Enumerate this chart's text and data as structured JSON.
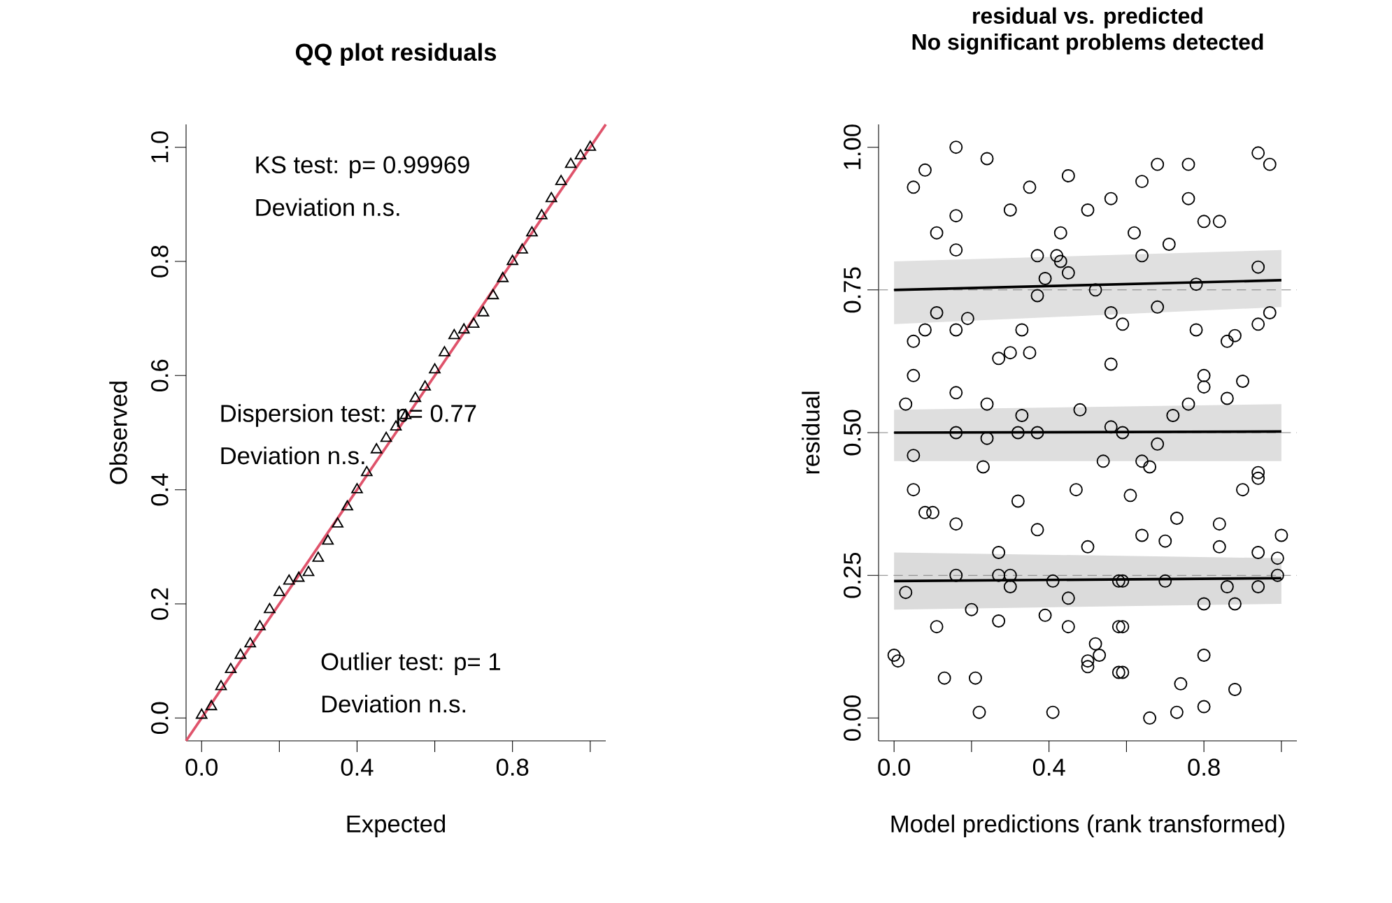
{
  "chart_data": [
    {
      "type": "scatter",
      "title": "QQ plot residuals",
      "xlabel": "Expected",
      "ylabel": "Observed",
      "xlim": [
        -0.04,
        1.04
      ],
      "ylim": [
        -0.04,
        1.04
      ],
      "xticks": [
        {
          "value": 0,
          "label": "0.0"
        },
        {
          "value": 0.2,
          "label": null
        },
        {
          "value": 0.4,
          "label": "0.4"
        },
        {
          "value": 0.6,
          "label": null
        },
        {
          "value": 0.8,
          "label": "0.8"
        },
        {
          "value": 1.0,
          "label": null
        }
      ],
      "yticks": [
        {
          "value": 0,
          "label": "0.0"
        },
        {
          "value": 0.2,
          "label": "0.2"
        },
        {
          "value": 0.4,
          "label": "0.4"
        },
        {
          "value": 0.6,
          "label": "0.6"
        },
        {
          "value": 0.8,
          "label": "0.8"
        },
        {
          "value": 1.0,
          "label": "1.0"
        }
      ],
      "annotations": [
        "KS test: p= 0.99969",
        "Deviation  n.s.",
        "Dispersion test: p= 0.77",
        "Deviation  n.s.",
        "Outlier test: p= 1",
        "Deviation  n.s."
      ],
      "series": [
        {
          "marker": "triangle",
          "color": "#000000",
          "x": [
            0,
            0.025,
            0.05,
            0.075,
            0.1,
            0.125,
            0.15,
            0.175,
            0.2,
            0.225,
            0.25,
            0.275,
            0.3,
            0.325,
            0.35,
            0.375,
            0.4,
            0.425,
            0.45,
            0.475,
            0.5,
            0.525,
            0.55,
            0.575,
            0.6,
            0.625,
            0.65,
            0.675,
            0.7,
            0.725,
            0.75,
            0.775,
            0.8,
            0.825,
            0.85,
            0.875,
            0.9,
            0.925,
            0.95,
            0.975,
            1.0
          ],
          "values": [
            0.005,
            0.02,
            0.055,
            0.085,
            0.11,
            0.13,
            0.16,
            0.19,
            0.22,
            0.24,
            0.245,
            0.255,
            0.28,
            0.31,
            0.34,
            0.37,
            0.4,
            0.43,
            0.47,
            0.49,
            0.51,
            0.53,
            0.56,
            0.58,
            0.61,
            0.64,
            0.67,
            0.68,
            0.69,
            0.71,
            0.74,
            0.77,
            0.8,
            0.82,
            0.85,
            0.88,
            0.91,
            0.94,
            0.97,
            0.985,
            1.0
          ]
        },
        {
          "type": "line",
          "color": "#df536b",
          "x": [
            -0.04,
            1.04
          ],
          "values": [
            -0.04,
            1.04
          ]
        }
      ]
    },
    {
      "type": "scatter",
      "title": "residual vs. predicted",
      "subtitle": "No significant problems detected",
      "xlabel": "Model predictions (rank transformed)",
      "ylabel": "residual",
      "xlim": [
        -0.04,
        1.04
      ],
      "ylim": [
        -0.04,
        1.04
      ],
      "xticks": [
        {
          "value": 0,
          "label": "0.0"
        },
        {
          "value": 0.2,
          "label": null
        },
        {
          "value": 0.4,
          "label": "0.4"
        },
        {
          "value": 0.6,
          "label": null
        },
        {
          "value": 0.8,
          "label": "0.8"
        },
        {
          "value": 1.0,
          "label": null
        }
      ],
      "yticks": [
        {
          "value": 0,
          "label": "0.00"
        },
        {
          "value": 0.25,
          "label": "0.25"
        },
        {
          "value": 0.5,
          "label": "0.50"
        },
        {
          "value": 0.75,
          "label": "0.75"
        },
        {
          "value": 1.0,
          "label": "1.00"
        }
      ],
      "ref_lines": [
        {
          "axis": "y",
          "value": 0.25,
          "color": "#808080",
          "line_style": "dashed"
        },
        {
          "axis": "y",
          "value": 0.5,
          "color": "#808080",
          "line_style": "dashed"
        },
        {
          "axis": "y",
          "value": 0.75,
          "color": "#808080",
          "line_style": "dashed"
        }
      ],
      "series": [
        {
          "type": "line",
          "color": "#000000",
          "x": [
            0,
            1
          ],
          "values": [
            0.75,
            0.767
          ],
          "lower": [
            0.69,
            0.72
          ],
          "upper": [
            0.8,
            0.82
          ]
        },
        {
          "type": "line",
          "color": "#000000",
          "x": [
            0,
            1
          ],
          "values": [
            0.5,
            0.502
          ],
          "lower": [
            0.45,
            0.45
          ],
          "upper": [
            0.54,
            0.55
          ]
        },
        {
          "type": "line",
          "color": "#000000",
          "x": [
            0,
            1
          ],
          "values": [
            0.24,
            0.245
          ],
          "lower": [
            0.19,
            0.2
          ],
          "upper": [
            0.29,
            0.28
          ]
        },
        {
          "marker": "circle",
          "color": "#000000",
          "x": [
            0.16,
            0.08,
            0.24,
            0.05,
            0.35,
            0.45,
            0.56,
            0.5,
            0.3,
            0.16,
            0.11,
            0.43,
            0.16,
            0.37,
            0.42,
            0.43,
            0.45,
            0.39,
            0.37,
            0.52,
            0.11,
            0.19,
            0.08,
            0.16,
            0.33,
            0.05,
            0.3,
            0.27,
            0.35,
            0.56,
            0.56,
            0.05,
            0.03,
            0.16,
            0.24,
            0.33,
            0.48,
            0.16,
            0.24,
            0.32,
            0.37,
            0.56,
            0.05,
            0.23,
            0.54,
            0.68,
            0.76,
            0.94,
            0.97,
            0.64,
            0.76,
            0.8,
            0.84,
            0.62,
            0.64,
            0.71,
            0.94,
            0.78,
            0.68,
            0.59,
            0.78,
            0.88,
            0.86,
            0.94,
            0.97,
            0.8,
            0.8,
            0.9,
            0.86,
            0.76,
            0.72,
            0.59,
            0.68,
            0.64,
            0.66,
            0.94,
            0.05,
            0.08,
            0.1,
            0.47,
            0.32,
            0.16,
            0.37,
            0.27,
            0.5,
            0.03,
            0.16,
            0.27,
            0.3,
            0.3,
            0.41,
            0.45,
            0.58,
            0.2,
            0.11,
            0.27,
            0.39,
            0.45,
            0.52,
            0.53,
            0.5,
            0.5,
            0.0,
            0.01,
            0.13,
            0.21,
            0.22,
            0.41,
            0.58,
            0.58,
            0.61,
            0.9,
            0.94,
            0.73,
            0.64,
            0.7,
            0.84,
            0.84,
            1.0,
            0.94,
            0.99,
            0.99,
            0.59,
            0.7,
            0.86,
            0.94,
            0.8,
            0.88,
            0.59,
            0.8,
            0.59,
            0.74,
            0.88,
            0.66,
            0.73,
            0.8
          ],
          "values": [
            1.0,
            0.96,
            0.98,
            0.93,
            0.93,
            0.95,
            0.91,
            0.89,
            0.89,
            0.88,
            0.85,
            0.85,
            0.82,
            0.81,
            0.81,
            0.8,
            0.78,
            0.77,
            0.74,
            0.75,
            0.71,
            0.7,
            0.68,
            0.68,
            0.68,
            0.66,
            0.64,
            0.63,
            0.64,
            0.71,
            0.62,
            0.6,
            0.55,
            0.57,
            0.55,
            0.53,
            0.54,
            0.5,
            0.49,
            0.5,
            0.5,
            0.51,
            0.46,
            0.44,
            0.45,
            0.97,
            0.97,
            0.99,
            0.97,
            0.94,
            0.91,
            0.87,
            0.87,
            0.85,
            0.81,
            0.83,
            0.79,
            0.76,
            0.72,
            0.69,
            0.68,
            0.67,
            0.66,
            0.69,
            0.71,
            0.6,
            0.58,
            0.59,
            0.56,
            0.55,
            0.53,
            0.5,
            0.48,
            0.45,
            0.44,
            0.43,
            0.4,
            0.36,
            0.36,
            0.4,
            0.38,
            0.34,
            0.33,
            0.29,
            0.3,
            0.22,
            0.25,
            0.25,
            0.25,
            0.23,
            0.24,
            0.21,
            0.24,
            0.19,
            0.16,
            0.17,
            0.18,
            0.16,
            0.13,
            0.11,
            0.1,
            0.09,
            0.11,
            0.1,
            0.07,
            0.07,
            0.01,
            0.01,
            0.08,
            0.16,
            0.39,
            0.4,
            0.42,
            0.35,
            0.32,
            0.31,
            0.34,
            0.3,
            0.32,
            0.29,
            0.28,
            0.25,
            0.24,
            0.24,
            0.23,
            0.23,
            0.2,
            0.2,
            0.16,
            0.11,
            0.08,
            0.06,
            0.05,
            0.0,
            0.01,
            0.02
          ]
        }
      ]
    }
  ]
}
